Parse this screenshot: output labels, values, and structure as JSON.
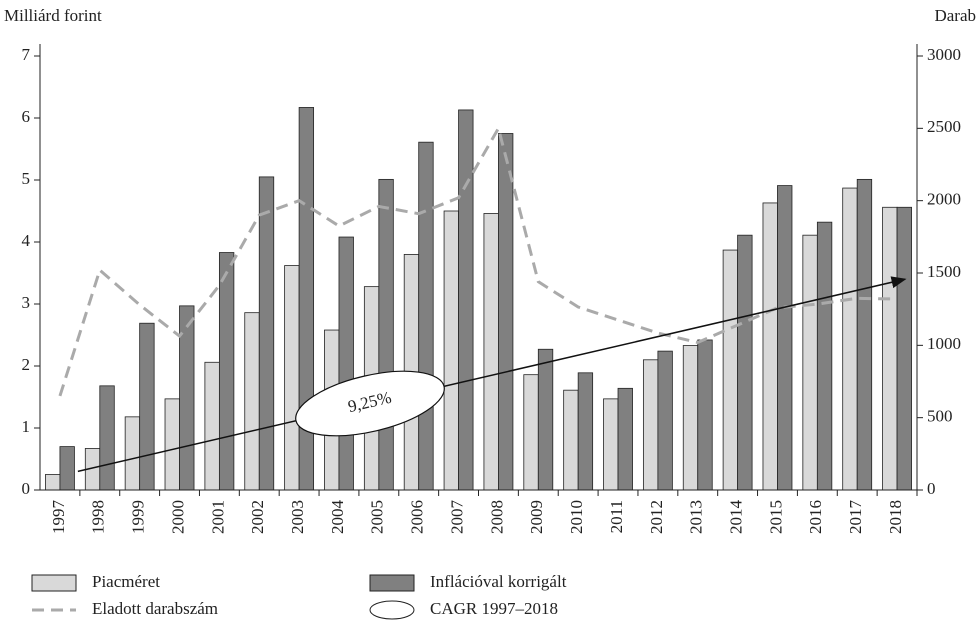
{
  "chart_data": {
    "type": "bar",
    "y_label": "Milliárd forint",
    "y2_label": "Darab",
    "categories": [
      "1997",
      "1998",
      "1999",
      "2000",
      "2001",
      "2002",
      "2003",
      "2004",
      "2005",
      "2006",
      "2007",
      "2008",
      "2009",
      "2010",
      "2011",
      "2012",
      "2013",
      "2014",
      "2015",
      "2016",
      "2017",
      "2018"
    ],
    "series": [
      {
        "name": "Piacméret",
        "type": "bar",
        "color": "#d9d9d9",
        "values": [
          0.25,
          0.67,
          1.18,
          1.47,
          2.06,
          2.86,
          3.62,
          2.58,
          3.28,
          3.8,
          4.5,
          4.46,
          1.86,
          1.61,
          1.47,
          2.1,
          2.33,
          3.87,
          4.63,
          4.11,
          4.87,
          4.56
        ]
      },
      {
        "name": "Inflációval korrigált",
        "type": "bar",
        "color": "#808080",
        "values": [
          0.7,
          1.68,
          2.69,
          2.97,
          3.83,
          5.05,
          6.17,
          4.08,
          5.01,
          5.61,
          6.13,
          5.75,
          2.27,
          1.89,
          1.64,
          2.24,
          2.42,
          4.11,
          4.91,
          4.32,
          5.01,
          4.56
        ]
      },
      {
        "name": "Eladott darabszám",
        "type": "line",
        "axis": "y2",
        "color": "#aaaaaa",
        "values": [
          650,
          1520,
          1280,
          1064,
          1415,
          1900,
          2000,
          1825,
          1960,
          1910,
          2020,
          2500,
          1440,
          1265,
          1175,
          1085,
          1020,
          1140,
          1260,
          1285,
          1325,
          1320
        ]
      }
    ],
    "cagr": {
      "label": "9,25%",
      "legend": "CAGR 1997–2018",
      "from": 0.3,
      "to": 3.4
    },
    "ylim": [
      0,
      7
    ],
    "yticks": [
      0,
      1,
      2,
      3,
      4,
      5,
      6,
      7
    ],
    "y2lim": [
      0,
      3000
    ],
    "y2ticks": [
      0,
      500,
      1000,
      1500,
      2000,
      2500,
      3000
    ]
  }
}
